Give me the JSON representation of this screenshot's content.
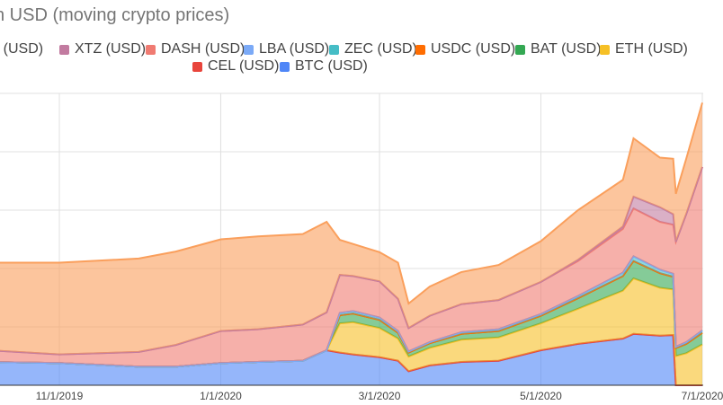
{
  "chart_data": {
    "type": "area",
    "stacked": true,
    "title": "n USD (moving crypto prices)",
    "x_ticks": [
      "11/1/2019",
      "1/1/2020",
      "3/1/2020",
      "5/1/2020",
      "7/1/2020"
    ],
    "x": [
      "2019-09-01",
      "2019-10-01",
      "2019-10-05",
      "2019-11-01",
      "2019-12-01",
      "2019-12-15",
      "2020-01-01",
      "2020-01-15",
      "2020-02-01",
      "2020-02-10",
      "2020-02-15",
      "2020-02-20",
      "2020-03-01",
      "2020-03-08",
      "2020-03-12",
      "2020-03-20",
      "2020-04-01",
      "2020-04-15",
      "2020-05-01",
      "2020-05-15",
      "2020-06-01",
      "2020-06-05",
      "2020-06-15",
      "2020-06-20",
      "2020-06-21",
      "2020-06-25",
      "2020-07-01"
    ],
    "series": [
      {
        "name": "BTC (USD)",
        "color": "#4f86f7",
        "values": [
          0.36,
          0.37,
          0.4,
          0.38,
          0.32,
          0.32,
          0.38,
          0.4,
          0.42,
          0.6,
          0.56,
          0.53,
          0.48,
          0.42,
          0.24,
          0.34,
          0.4,
          0.42,
          0.6,
          0.71,
          0.8,
          0.88,
          0.85,
          0.86,
          0.0,
          0.0,
          0.0
        ]
      },
      {
        "name": "CEL (USD)",
        "color": "#e8453c",
        "values": [
          0.0,
          0.0,
          0.0,
          0.0,
          0.0,
          0.0,
          0.0,
          0.0,
          0.0,
          0.0,
          0.0,
          0.0,
          0.0,
          0.0,
          0.0,
          0.0,
          0.0,
          0.0,
          0.0,
          0.0,
          0.0,
          0.0,
          0.0,
          0.0,
          0.0,
          0.0,
          0.0
        ]
      },
      {
        "name": "ETH (USD)",
        "color": "#f6c026",
        "values": [
          0.0,
          0.0,
          0.0,
          0.0,
          0.0,
          0.0,
          0.0,
          0.0,
          0.0,
          0.0,
          0.5,
          0.55,
          0.5,
          0.38,
          0.25,
          0.3,
          0.38,
          0.4,
          0.46,
          0.6,
          0.82,
          0.95,
          0.82,
          0.78,
          0.5,
          0.55,
          0.7
        ]
      },
      {
        "name": "BAT (USD)",
        "color": "#34a853",
        "values": [
          0.0,
          0.0,
          0.0,
          0.0,
          0.0,
          0.0,
          0.0,
          0.0,
          0.0,
          0.0,
          0.14,
          0.15,
          0.14,
          0.1,
          0.07,
          0.08,
          0.1,
          0.11,
          0.13,
          0.18,
          0.25,
          0.3,
          0.25,
          0.22,
          0.14,
          0.16,
          0.2
        ]
      },
      {
        "name": "USDC (USD)",
        "color": "#ff6d01",
        "values": [
          0.0,
          0.0,
          0.0,
          0.0,
          0.0,
          0.0,
          0.0,
          0.0,
          0.0,
          0.0,
          0.0,
          0.0,
          0.0,
          0.0,
          0.0,
          0.0,
          0.0,
          0.0,
          0.0,
          0.0,
          0.0,
          0.0,
          0.0,
          0.0,
          0.0,
          0.0,
          0.0
        ]
      },
      {
        "name": "ZEC (USD)",
        "color": "#46bdc6",
        "values": [
          0.0,
          0.0,
          0.0,
          0.0,
          0.0,
          0.0,
          0.0,
          0.0,
          0.0,
          0.0,
          0.04,
          0.04,
          0.04,
          0.03,
          0.02,
          0.02,
          0.03,
          0.03,
          0.03,
          0.04,
          0.06,
          0.08,
          0.06,
          0.05,
          0.02,
          0.03,
          0.04
        ]
      },
      {
        "name": "LBA (USD)",
        "color": "#7baaf7",
        "values": [
          0.0,
          0.0,
          0.0,
          0.0,
          0.0,
          0.0,
          0.0,
          0.0,
          0.0,
          0.0,
          0.0,
          0.0,
          0.0,
          0.0,
          0.0,
          0.0,
          0.0,
          0.0,
          0.0,
          0.0,
          0.0,
          0.0,
          0.0,
          0.0,
          0.0,
          0.0,
          0.0
        ]
      },
      {
        "name": "DASH (USD)",
        "color": "#f07b72",
        "values": [
          0.0,
          0.0,
          0.2,
          0.15,
          0.25,
          0.37,
          0.55,
          0.56,
          0.62,
          0.65,
          0.65,
          0.6,
          0.62,
          0.55,
          0.4,
          0.45,
          0.48,
          0.5,
          0.55,
          0.6,
          0.75,
          0.82,
          0.82,
          0.84,
          1.8,
          2.2,
          2.8
        ]
      },
      {
        "name": "XTZ (USD)",
        "color": "#c27ba0",
        "values": [
          0.0,
          0.0,
          0.0,
          0.0,
          0.0,
          0.0,
          0.0,
          0.0,
          0.0,
          0.0,
          0.0,
          0.0,
          0.0,
          0.0,
          0.0,
          0.0,
          0.0,
          0.0,
          0.0,
          0.02,
          0.04,
          0.2,
          0.25,
          0.18,
          0.0,
          0.0,
          0.0
        ]
      },
      {
        "name": "LINK (USD)",
        "color": "#fa9f5c",
        "values": [
          0.0,
          0.0,
          1.5,
          1.57,
          1.6,
          1.6,
          1.57,
          1.59,
          1.55,
          1.55,
          0.6,
          0.55,
          0.5,
          0.62,
          0.42,
          0.5,
          0.55,
          0.6,
          0.7,
          0.85,
          0.8,
          1.0,
          0.85,
          0.95,
          0.82,
          0.95,
          1.1
        ]
      }
    ],
    "legend_position": "top",
    "grid": true
  },
  "legend": {
    "row1": [
      "NK (USD)",
      "XTZ (USD)",
      "DASH (USD)",
      "LBA (USD)",
      "ZEC (USD)",
      "USDC (USD)",
      "BAT (USD)",
      "ETH (USD)"
    ],
    "row1_colors": [
      "#fa9f5c",
      "#c27ba0",
      "#f07b72",
      "#7baaf7",
      "#46bdc6",
      "#ff6d01",
      "#34a853",
      "#f6c026"
    ],
    "row2": [
      "CEL (USD)",
      "BTC (USD)"
    ],
    "row2_colors": [
      "#e8453c",
      "#4f86f7"
    ]
  }
}
